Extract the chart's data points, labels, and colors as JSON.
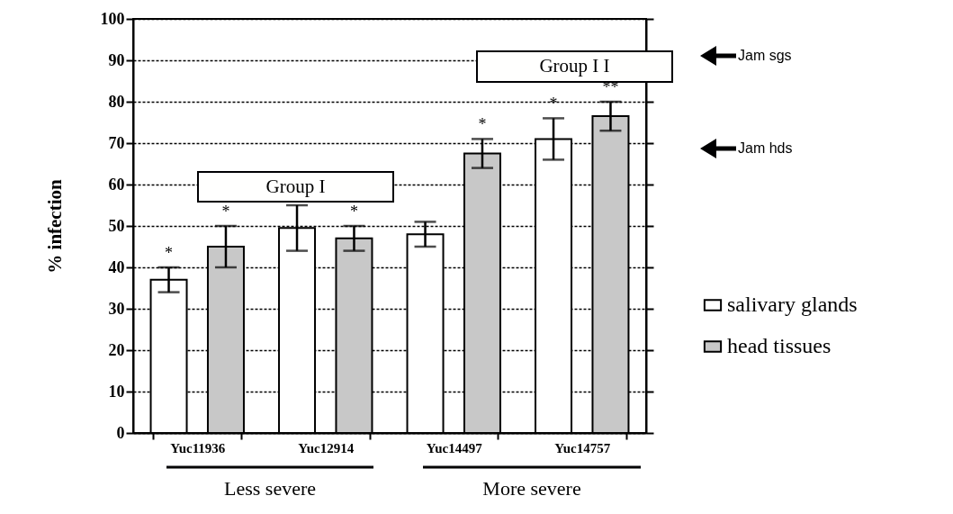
{
  "chart_data": {
    "type": "bar",
    "ylabel": "% infection",
    "categories": [
      "Yuc11936",
      "Yuc12914",
      "Yuc14497",
      "Yuc14757"
    ],
    "series": [
      {
        "name": "salivary glands",
        "color": "#ffffff",
        "values": [
          37,
          49.5,
          48,
          71
        ],
        "errors": [
          [
            34,
            40
          ],
          [
            44,
            55
          ],
          [
            45,
            51
          ],
          [
            66,
            76
          ]
        ]
      },
      {
        "name": "head tissues",
        "color": "#c8c8c8",
        "values": [
          45,
          47,
          67.5,
          76.5
        ],
        "errors": [
          [
            40,
            50
          ],
          [
            44,
            50
          ],
          [
            64,
            71
          ],
          [
            73,
            80
          ]
        ]
      }
    ],
    "ylim": [
      0,
      100
    ],
    "yticks": [
      0,
      10,
      20,
      30,
      40,
      50,
      60,
      70,
      80,
      90,
      100
    ],
    "grid": "y",
    "legend": "right",
    "annotations": [
      "*",
      "*",
      "*",
      "*",
      "*",
      "**",
      "Group I",
      "Group I I",
      "Jam sgs",
      "Jam hds",
      "Less severe",
      "More severe"
    ]
  }
}
